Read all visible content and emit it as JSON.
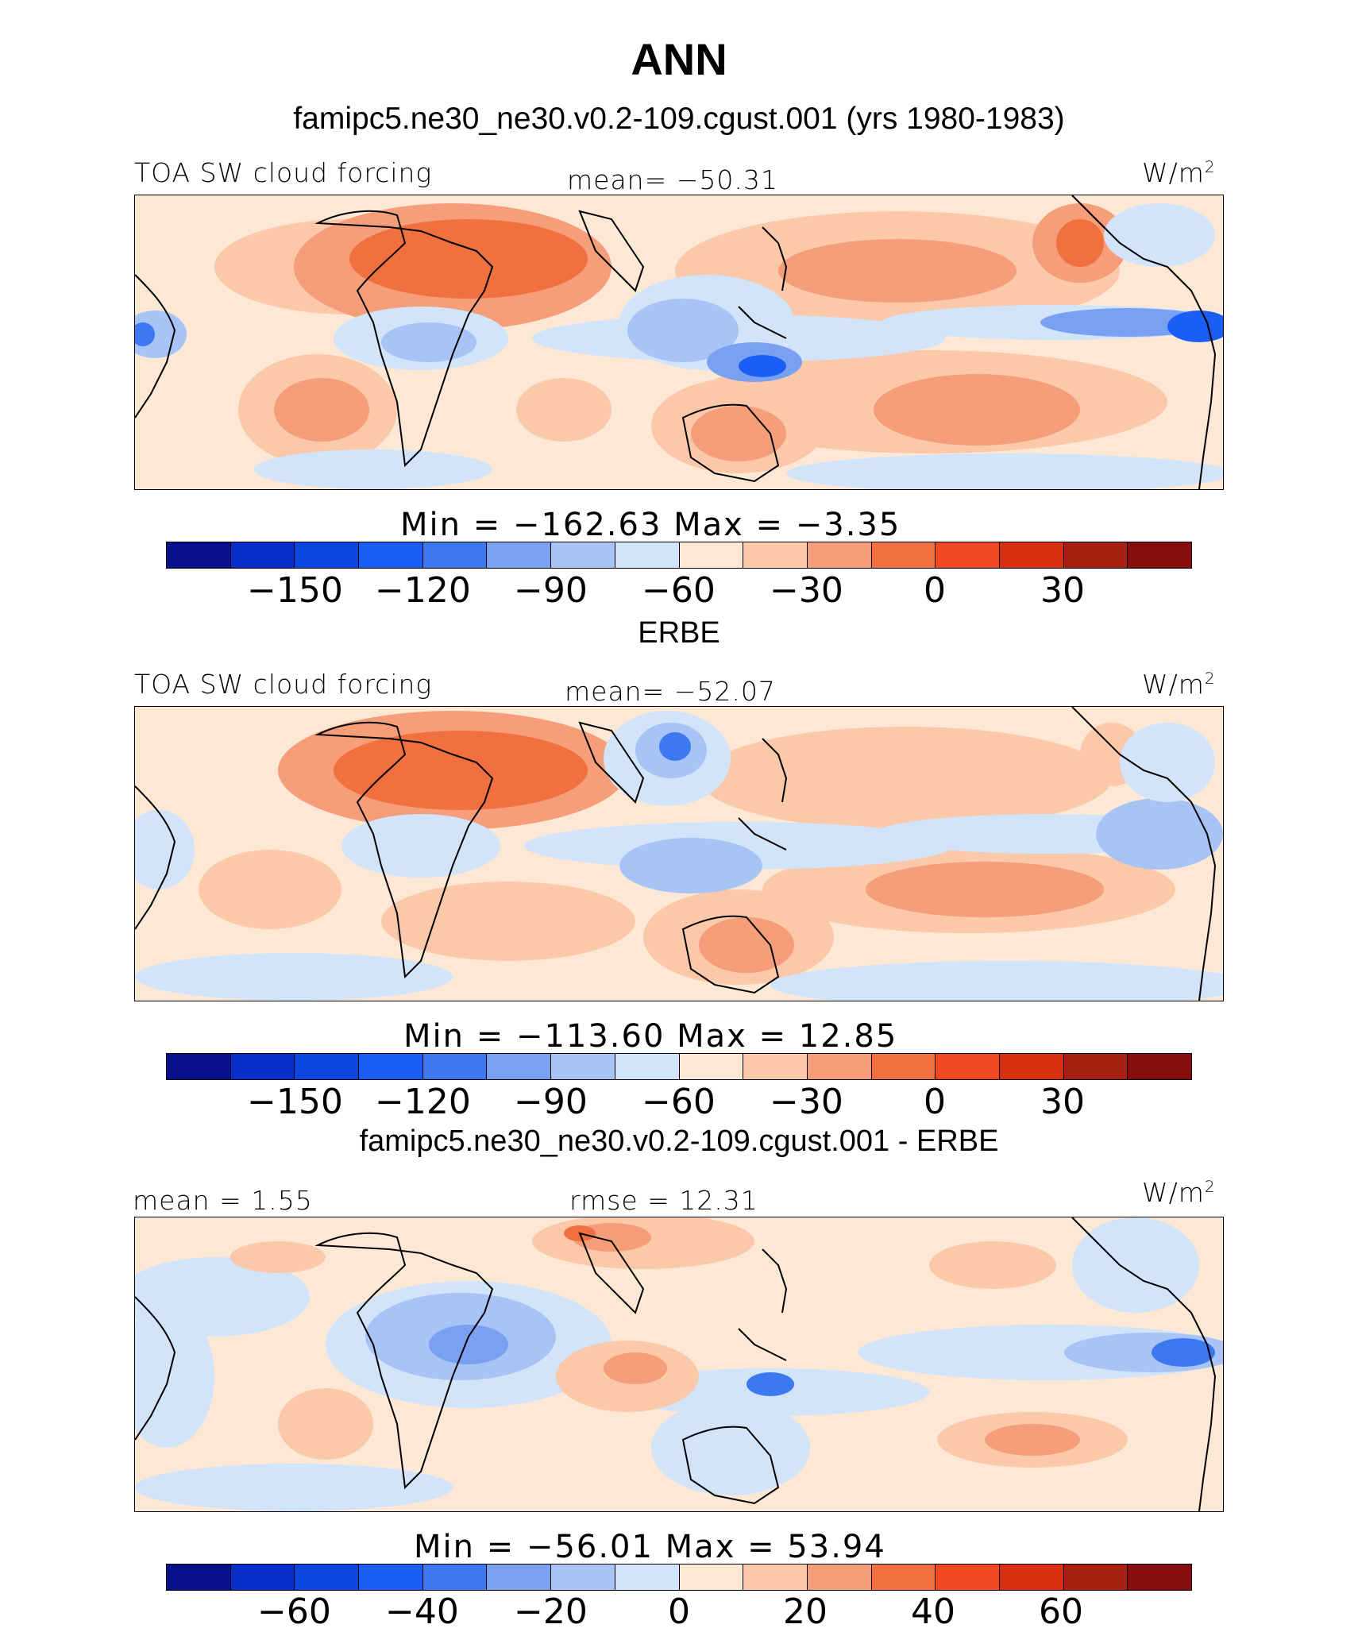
{
  "header": {
    "title": "ANN",
    "case": "famipc5.ne30_ne30.v0.2-109.cgust.001 (yrs 1980-1983)"
  },
  "colors": {
    "abs": [
      "#08108c",
      "#0a2ec8",
      "#0a46e0",
      "#1a5ef6",
      "#3c78f0",
      "#7aa0f2",
      "#a8c4f6",
      "#d2e4fa",
      "#fde8d6",
      "#fbc9a9",
      "#f59e79",
      "#f1703f",
      "#f04820",
      "#d93010",
      "#a82010",
      "#870c0c"
    ],
    "diff": [
      "#08108c",
      "#0a2ec8",
      "#0a46e0",
      "#1a5ef6",
      "#3c78f0",
      "#7aa0f2",
      "#a8c4f6",
      "#d2e4fa",
      "#fde8d6",
      "#fbc9a9",
      "#f59e79",
      "#f1703f",
      "#f04820",
      "#d93010",
      "#a82010",
      "#870c0c"
    ]
  },
  "panels": [
    {
      "left_label": "TOA SW cloud forcing",
      "center_label": "mean=  −50.31",
      "units": "W/m",
      "units_sup": "2",
      "min_max": "Min  =  −162.63  Max  =    −3.35",
      "ticks": [
        "−150",
        "−120",
        "−90",
        "−60",
        "−30",
        "0",
        "30"
      ]
    },
    {
      "section_title": "ERBE",
      "left_label": "TOA SW cloud forcing",
      "center_label": "mean=  −52.07",
      "units": "W/m",
      "units_sup": "2",
      "min_max": "Min  =  −113.60  Max  =    12.85",
      "ticks": [
        "−150",
        "−120",
        "−90",
        "−60",
        "−30",
        "0",
        "30"
      ]
    },
    {
      "section_title": "famipc5.ne30_ne30.v0.2-109.cgust.001 - ERBE",
      "left_label": "mean  =    1.55",
      "center_label": "rmse  =   12.31",
      "units": "W/m",
      "units_sup": "2",
      "min_max": "Min  =  −56.01  Max  =    53.94",
      "ticks": [
        "−60",
        "−40",
        "−20",
        "0",
        "20",
        "40",
        "60"
      ]
    }
  ]
}
